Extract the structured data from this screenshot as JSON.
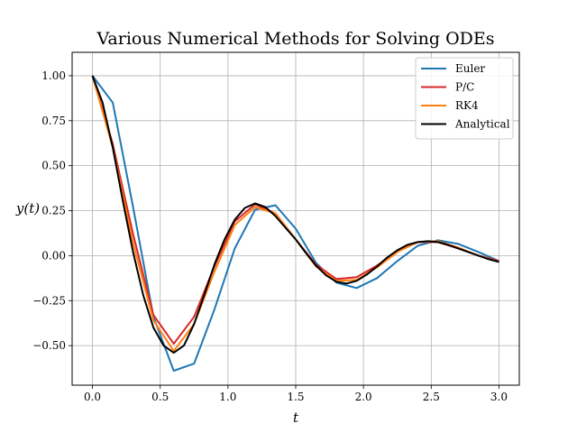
{
  "chart_data": {
    "type": "line",
    "title": "Various Numerical Methods for Solving ODEs",
    "xlabel": "t",
    "ylabel": "y(t)",
    "xlim": [
      -0.15,
      3.15
    ],
    "ylim": [
      -0.72,
      1.13
    ],
    "xticks": [
      0.0,
      0.5,
      1.0,
      1.5,
      2.0,
      2.5,
      3.0
    ],
    "xtick_labels": [
      "0.0",
      "0.5",
      "1.0",
      "1.5",
      "2.0",
      "2.5",
      "3.0"
    ],
    "yticks": [
      -0.5,
      -0.25,
      0.0,
      0.25,
      0.5,
      0.75,
      1.0
    ],
    "ytick_labels": [
      "−0.50",
      "−0.25",
      "0.00",
      "0.25",
      "0.50",
      "0.75",
      "1.00"
    ],
    "grid": true,
    "legend_position": "top-right",
    "series": [
      {
        "name": "Euler",
        "color": "#1f77b4",
        "x": [
          0.0,
          0.15,
          0.3,
          0.45,
          0.6,
          0.75,
          0.9,
          1.05,
          1.2,
          1.35,
          1.5,
          1.65,
          1.8,
          1.95,
          2.1,
          2.25,
          2.4,
          2.55,
          2.7,
          2.85,
          3.0
        ],
        "y": [
          1.0,
          0.85,
          0.27,
          -0.34,
          -0.64,
          -0.6,
          -0.3,
          0.04,
          0.255,
          0.28,
          0.15,
          -0.04,
          -0.15,
          -0.18,
          -0.125,
          -0.03,
          0.055,
          0.085,
          0.065,
          0.02,
          -0.03
        ]
      },
      {
        "name": "P/C",
        "color": "#d62728",
        "x": [
          0.0,
          0.15,
          0.3,
          0.45,
          0.6,
          0.75,
          0.9,
          1.05,
          1.2,
          1.35,
          1.5,
          1.65,
          1.8,
          1.95,
          2.1,
          2.25,
          2.4,
          2.55,
          2.7,
          2.85,
          3.0
        ],
        "y": [
          1.0,
          0.62,
          0.12,
          -0.33,
          -0.49,
          -0.34,
          -0.06,
          0.19,
          0.285,
          0.235,
          0.09,
          -0.05,
          -0.13,
          -0.12,
          -0.055,
          0.025,
          0.075,
          0.075,
          0.04,
          0.0,
          -0.03
        ]
      },
      {
        "name": "RK4",
        "color": "#ff7f0e",
        "x": [
          0.0,
          0.15,
          0.3,
          0.45,
          0.6,
          0.75,
          0.9,
          1.05,
          1.2,
          1.35,
          1.5,
          1.65,
          1.8,
          1.95,
          2.1,
          2.25,
          2.4,
          2.55,
          2.7,
          2.85,
          3.0
        ],
        "y": [
          1.0,
          0.6,
          0.07,
          -0.36,
          -0.53,
          -0.38,
          -0.09,
          0.17,
          0.27,
          0.235,
          0.09,
          -0.06,
          -0.14,
          -0.135,
          -0.065,
          0.02,
          0.075,
          0.08,
          0.045,
          0.0,
          -0.035
        ]
      },
      {
        "name": "Analytical",
        "color": "#000000",
        "x": [
          0.0,
          0.075,
          0.15,
          0.225,
          0.3,
          0.375,
          0.45,
          0.525,
          0.6,
          0.675,
          0.75,
          0.825,
          0.9,
          0.975,
          1.05,
          1.125,
          1.2,
          1.275,
          1.35,
          1.425,
          1.5,
          1.575,
          1.65,
          1.725,
          1.8,
          1.875,
          1.95,
          2.025,
          2.1,
          2.175,
          2.25,
          2.325,
          2.4,
          2.475,
          2.55,
          2.625,
          2.7,
          2.775,
          2.85,
          2.925,
          3.0
        ],
        "y": [
          1.0,
          0.85,
          0.6,
          0.3,
          0.02,
          -0.22,
          -0.4,
          -0.5,
          -0.54,
          -0.5,
          -0.38,
          -0.22,
          -0.05,
          0.09,
          0.2,
          0.265,
          0.29,
          0.27,
          0.22,
          0.155,
          0.09,
          0.015,
          -0.055,
          -0.11,
          -0.145,
          -0.155,
          -0.14,
          -0.105,
          -0.06,
          -0.01,
          0.03,
          0.06,
          0.075,
          0.08,
          0.075,
          0.06,
          0.04,
          0.02,
          0.0,
          -0.02,
          -0.035
        ]
      }
    ]
  }
}
